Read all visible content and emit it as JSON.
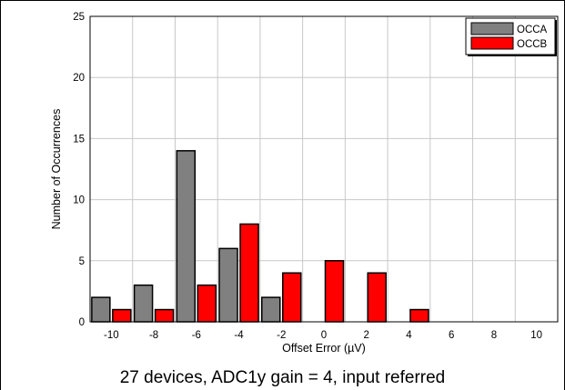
{
  "chart_data": {
    "type": "bar",
    "xlabel": "Offset Error (µV)",
    "ylabel": "Number of Occurrences",
    "caption": "27 devices, ADC1y gain = 4, input referred",
    "categories": [
      -10,
      -8,
      -6,
      -4,
      -2,
      0,
      2,
      4,
      6,
      8,
      10
    ],
    "x_tick_labels": [
      "-10",
      "-8",
      "-6",
      "-4",
      "-2",
      "0",
      "2",
      "4",
      "6",
      "8",
      "10"
    ],
    "ylim": [
      0,
      25
    ],
    "y_ticks": [
      0,
      5,
      10,
      15,
      20,
      25
    ],
    "grid": true,
    "legend_position": "top-right",
    "series": [
      {
        "name": "OCCA",
        "color": "#808080",
        "values": [
          2,
          3,
          14,
          6,
          2,
          0,
          0,
          0,
          0,
          0,
          0
        ]
      },
      {
        "name": "OCCB",
        "color": "#ff0000",
        "values": [
          1,
          1,
          3,
          8,
          4,
          5,
          4,
          1,
          0,
          0,
          0
        ]
      }
    ]
  }
}
